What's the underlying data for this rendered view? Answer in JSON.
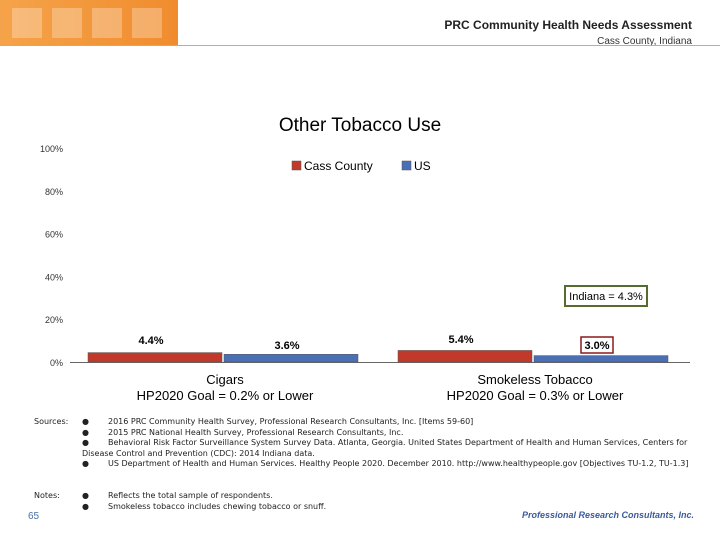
{
  "header": {
    "title": "PRC Community Health Needs Assessment",
    "subtitle": "Cass County, Indiana"
  },
  "chart_data": {
    "type": "bar",
    "title": "Other Tobacco Use",
    "categories": [
      "Cigars\nHP2020 Goal = 0.2% or Lower",
      "Smokeless Tobacco\nHP2020 Goal = 0.3% or Lower"
    ],
    "series": [
      {
        "name": "Cass County",
        "values": [
          4.4,
          5.4
        ],
        "labels": [
          "4.4%",
          "5.4%"
        ],
        "color": "#c0392b"
      },
      {
        "name": "US",
        "values": [
          3.6,
          3.0
        ],
        "labels": [
          "3.6%",
          "3.0%"
        ],
        "color": "#4a6fb5"
      }
    ],
    "yticks": [
      "100%",
      "80%",
      "60%",
      "40%",
      "20%",
      "0%"
    ],
    "ylim": [
      0,
      100
    ],
    "legend": "top-center",
    "grid": false,
    "annotation": "Indiana = 4.3%"
  },
  "sources": {
    "label": "Sources:",
    "items": [
      "2016 PRC Community Health Survey, Professional Research Consultants, Inc. [Items 59-60]",
      "2015 PRC National Health Survey, Professional Research Consultants, Inc.",
      "Behavioral Risk Factor Surveillance System Survey Data. Atlanta, Georgia. United States Department of Health and Human Services, Centers for Disease Control and Prevention (CDC): 2014 Indiana data.",
      "US Department of Health and Human Services. Healthy People 2020. December 2010. http://www.healthypeople.gov [Objectives TU-1.2, TU-1.3]"
    ]
  },
  "notes": {
    "label": "Notes:",
    "items": [
      "Reflects the total sample of respondents.",
      "Smokeless tobacco includes chewing tobacco or snuff."
    ]
  },
  "page_number": "65",
  "footer_logo": "Professional Research Consultants, Inc."
}
